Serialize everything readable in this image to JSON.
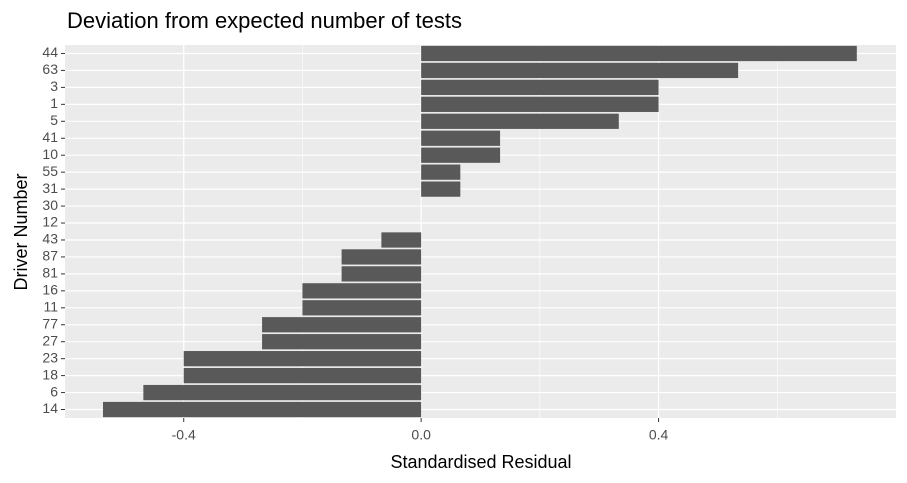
{
  "chart_data": {
    "type": "hbar",
    "title": "Deviation from expected number of tests",
    "x_label": "Standardised Residual",
    "y_label": "Driver Number",
    "categories": [
      "44",
      "63",
      "3",
      "1",
      "5",
      "41",
      "10",
      "55",
      "31",
      "30",
      "12",
      "43",
      "87",
      "81",
      "16",
      "11",
      "77",
      "27",
      "23",
      "18",
      "6",
      "14"
    ],
    "values": [
      0.734,
      0.534,
      0.4,
      0.4,
      0.333,
      0.133,
      0.133,
      0.066,
      0.066,
      0,
      0,
      -0.067,
      -0.134,
      -0.134,
      -0.2,
      -0.2,
      -0.268,
      -0.268,
      -0.4,
      -0.4,
      -0.468,
      -0.536
    ],
    "color": "#595959",
    "xlim": [
      -0.6,
      0.8
    ],
    "xticks": [
      -0.4,
      {
        "value": 0,
        "label": "0.0"
      },
      0.4
    ],
    "minor_xticks": [
      -0.2,
      0.2,
      0.6
    ],
    "grid": true
  }
}
